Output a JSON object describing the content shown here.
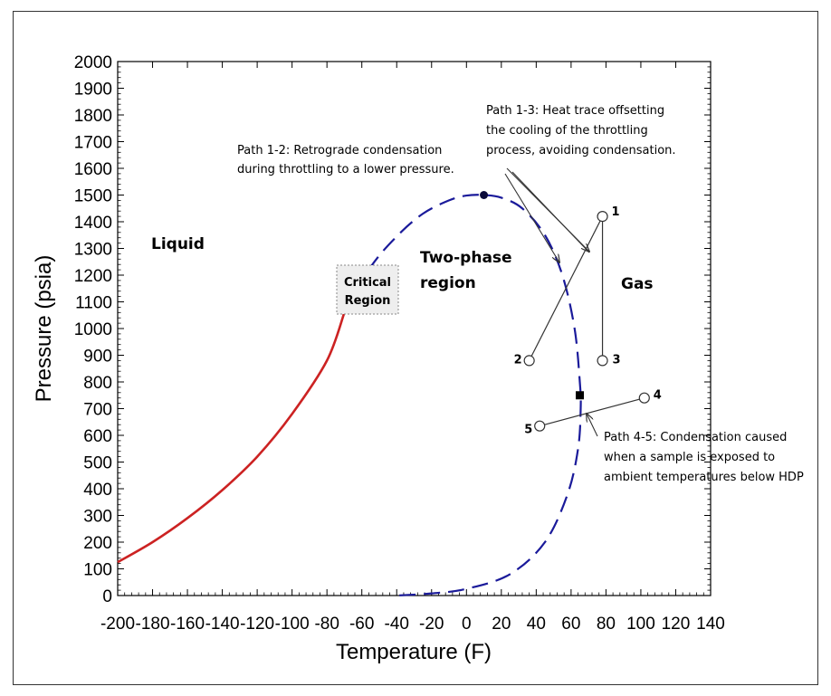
{
  "chart_data": {
    "type": "line",
    "xlabel": "Temperature (F)",
    "ylabel": "Pressure (psia)",
    "xlim": [
      -200,
      140
    ],
    "ylim": [
      0,
      2000
    ],
    "x_ticks": [
      -200,
      -180,
      -160,
      -140,
      -120,
      -100,
      -80,
      -60,
      -40,
      -20,
      0,
      20,
      40,
      60,
      80,
      100,
      120,
      140
    ],
    "y_ticks": [
      0,
      100,
      200,
      300,
      400,
      500,
      600,
      700,
      800,
      900,
      1000,
      1100,
      1200,
      1300,
      1400,
      1500,
      1600,
      1700,
      1800,
      1900,
      2000
    ],
    "colors": {
      "liquid_curve": "#cc2222",
      "phase_envelope": "#1a1a9a"
    },
    "series": [
      {
        "style": "solid",
        "x": [
          -200,
          -180,
          -160,
          -140,
          -120,
          -100,
          -80,
          -70
        ],
        "y": [
          125,
          200,
          290,
          395,
          520,
          680,
          880,
          1060
        ]
      },
      {
        "style": "dashed",
        "x": [
          -70,
          -55,
          -40,
          -25,
          -10,
          0,
          10,
          20,
          32,
          45,
          55,
          62,
          65,
          65.5,
          64,
          58,
          45,
          25,
          0,
          -20,
          -40
        ],
        "y": [
          1060,
          1230,
          1345,
          1430,
          1480,
          1498,
          1500,
          1490,
          1450,
          1350,
          1200,
          1000,
          800,
          700,
          550,
          380,
          200,
          80,
          25,
          8,
          0
        ]
      }
    ],
    "markers": [
      {
        "shape": "circle-filled",
        "x": 10,
        "y": 1500
      },
      {
        "shape": "square-filled",
        "x": 65,
        "y": 750
      }
    ],
    "points": [
      {
        "label": "1",
        "x": 78,
        "y": 1420
      },
      {
        "label": "2",
        "x": 36,
        "y": 880
      },
      {
        "label": "3",
        "x": 78,
        "y": 880
      },
      {
        "label": "4",
        "x": 102,
        "y": 740
      },
      {
        "label": "5",
        "x": 42,
        "y": 635
      }
    ],
    "paths": [
      {
        "from": "1",
        "to": "2"
      },
      {
        "from": "1",
        "to": "3"
      },
      {
        "from": "4",
        "to": "5"
      }
    ],
    "regions": {
      "liquid": "Liquid",
      "two_phase_1": "Two-phase",
      "two_phase_2": "region",
      "gas": "Gas",
      "critical_1": "Critical",
      "critical_2": "Region"
    },
    "annotations": {
      "path12_line1": "Path 1-2: Retrograde condensation",
      "path12_line2": "during throttling to a lower pressure.",
      "path13_line1": "Path 1-3: Heat trace offsetting",
      "path13_line2": "the cooling of the throttling",
      "path13_line3": "process, avoiding condensation.",
      "path45_line1": "Path 4-5: Condensation caused",
      "path45_line2": "when a sample is exposed to",
      "path45_line3": "ambient temperatures below HDP"
    }
  }
}
